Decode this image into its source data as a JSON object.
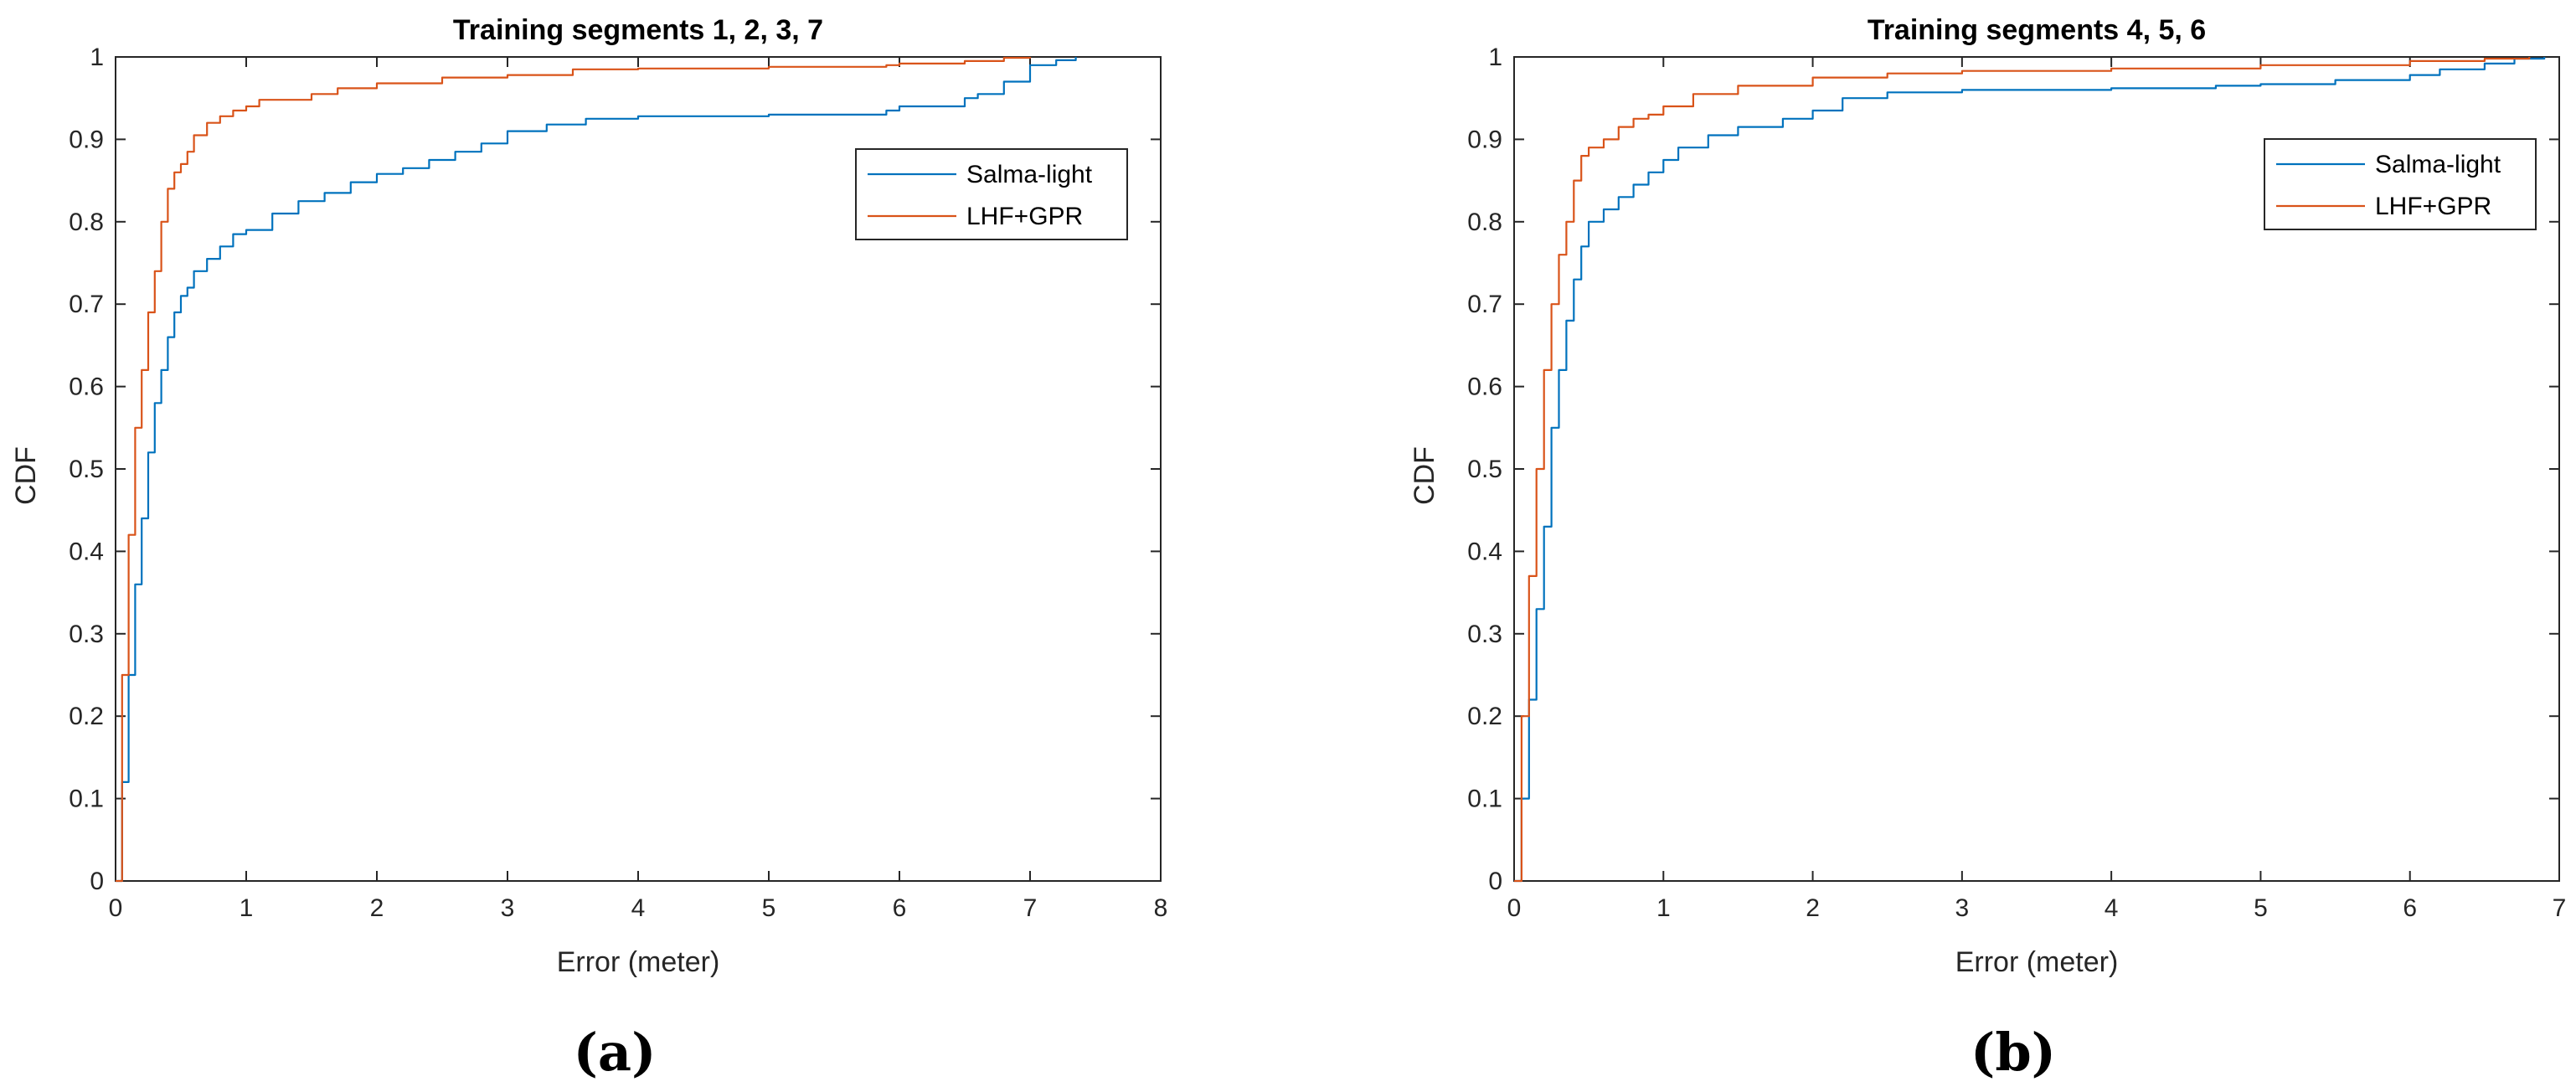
{
  "chart_data": [
    {
      "type": "line",
      "title": "Training segments 1, 2, 3, 7",
      "xlabel": "Error (meter)",
      "ylabel": "CDF",
      "caption": "(a)",
      "xlim": [
        0,
        8
      ],
      "ylim": [
        0,
        1
      ],
      "xticks": [
        0,
        1,
        2,
        3,
        4,
        5,
        6,
        7,
        8
      ],
      "yticks": [
        0,
        0.1,
        0.2,
        0.3,
        0.4,
        0.5,
        0.6,
        0.7,
        0.8,
        0.9,
        1
      ],
      "legend": "top-right",
      "grid": false,
      "series": [
        {
          "name": "Salma-light",
          "color": "#0072BD",
          "x": [
            0,
            0.05,
            0.1,
            0.15,
            0.2,
            0.25,
            0.3,
            0.35,
            0.4,
            0.45,
            0.5,
            0.55,
            0.6,
            0.7,
            0.8,
            0.9,
            1.0,
            1.2,
            1.4,
            1.6,
            1.8,
            2.0,
            2.2,
            2.4,
            2.6,
            2.8,
            3.0,
            3.3,
            3.6,
            4.0,
            5.0,
            5.9,
            6.0,
            6.5,
            6.6,
            6.8,
            7.0,
            7.2,
            7.35
          ],
          "y": [
            0,
            0.12,
            0.25,
            0.36,
            0.44,
            0.52,
            0.58,
            0.62,
            0.66,
            0.69,
            0.71,
            0.72,
            0.74,
            0.755,
            0.77,
            0.785,
            0.79,
            0.81,
            0.825,
            0.835,
            0.848,
            0.858,
            0.865,
            0.875,
            0.885,
            0.895,
            0.91,
            0.918,
            0.925,
            0.928,
            0.93,
            0.935,
            0.94,
            0.95,
            0.955,
            0.97,
            0.99,
            0.996,
            1.0
          ]
        },
        {
          "name": "LHF+GPR",
          "color": "#D95319",
          "x": [
            0,
            0.05,
            0.1,
            0.15,
            0.2,
            0.25,
            0.3,
            0.35,
            0.4,
            0.45,
            0.5,
            0.55,
            0.6,
            0.7,
            0.8,
            0.9,
            1.0,
            1.1,
            1.5,
            1.7,
            2.0,
            2.5,
            3.0,
            3.5,
            4.0,
            5.0,
            5.9,
            6.0,
            6.5,
            6.8,
            7.0
          ],
          "y": [
            0,
            0.25,
            0.42,
            0.55,
            0.62,
            0.69,
            0.74,
            0.8,
            0.84,
            0.86,
            0.87,
            0.885,
            0.905,
            0.92,
            0.928,
            0.935,
            0.94,
            0.948,
            0.955,
            0.962,
            0.968,
            0.975,
            0.978,
            0.985,
            0.986,
            0.988,
            0.99,
            0.992,
            0.995,
            0.999,
            1.0
          ]
        }
      ]
    },
    {
      "type": "line",
      "title": "Training segments 4, 5, 6",
      "xlabel": "Error (meter)",
      "ylabel": "CDF",
      "caption": "(b)",
      "xlim": [
        0,
        7
      ],
      "ylim": [
        0,
        1
      ],
      "xticks": [
        0,
        1,
        2,
        3,
        4,
        5,
        6,
        7
      ],
      "yticks": [
        0,
        0.1,
        0.2,
        0.3,
        0.4,
        0.5,
        0.6,
        0.7,
        0.8,
        0.9,
        1
      ],
      "legend": "top-right",
      "grid": false,
      "series": [
        {
          "name": "Salma-light",
          "color": "#0072BD",
          "x": [
            0,
            0.05,
            0.1,
            0.15,
            0.2,
            0.25,
            0.3,
            0.35,
            0.4,
            0.45,
            0.5,
            0.6,
            0.7,
            0.8,
            0.9,
            1.0,
            1.1,
            1.3,
            1.5,
            1.8,
            2.0,
            2.2,
            2.5,
            3.0,
            4.0,
            4.7,
            5.0,
            5.5,
            6.0,
            6.2,
            6.5,
            6.7,
            6.9
          ],
          "y": [
            0,
            0.1,
            0.22,
            0.33,
            0.43,
            0.55,
            0.62,
            0.68,
            0.73,
            0.77,
            0.8,
            0.815,
            0.83,
            0.845,
            0.86,
            0.875,
            0.89,
            0.905,
            0.915,
            0.925,
            0.935,
            0.95,
            0.957,
            0.96,
            0.962,
            0.965,
            0.967,
            0.972,
            0.978,
            0.985,
            0.992,
            0.998,
            1.0
          ]
        },
        {
          "name": "LHF+GPR",
          "color": "#D95319",
          "x": [
            0,
            0.05,
            0.1,
            0.15,
            0.2,
            0.25,
            0.3,
            0.35,
            0.4,
            0.45,
            0.5,
            0.6,
            0.7,
            0.8,
            0.9,
            1.0,
            1.2,
            1.5,
            2.0,
            2.5,
            3.0,
            4.0,
            5.0,
            6.0,
            6.5,
            6.8
          ],
          "y": [
            0,
            0.2,
            0.37,
            0.5,
            0.62,
            0.7,
            0.76,
            0.8,
            0.85,
            0.88,
            0.89,
            0.9,
            0.915,
            0.925,
            0.93,
            0.94,
            0.955,
            0.965,
            0.975,
            0.98,
            0.983,
            0.986,
            0.99,
            0.995,
            0.998,
            1.0
          ]
        }
      ]
    }
  ]
}
